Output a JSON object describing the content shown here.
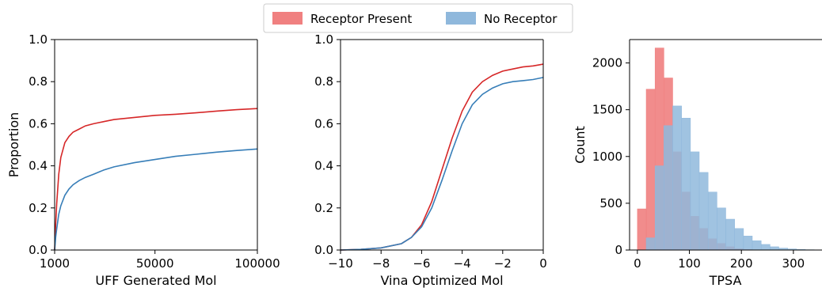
{
  "legend": {
    "placement": "top-center",
    "entries": [
      {
        "label": "Receptor Present",
        "color": "#e41a1c",
        "fill": "#f08080"
      },
      {
        "label": "No Receptor",
        "color": "#377eb8",
        "fill": "#8fb8dc"
      }
    ]
  },
  "chart_data": [
    {
      "type": "line",
      "xlabel": "UFF Generated Mol",
      "ylabel": "Proportion",
      "xlim": [
        1000,
        100000
      ],
      "ylim": [
        0,
        1
      ],
      "xticks": [
        1000,
        50000,
        100000
      ],
      "xtick_labels": [
        "1000",
        "50000",
        "100000"
      ],
      "yticks": [
        0,
        0.2,
        0.4,
        0.6,
        0.8,
        1.0
      ],
      "ytick_labels": [
        "0.0",
        "0.2",
        "0.4",
        "0.6",
        "0.8",
        "1.0"
      ],
      "series": [
        {
          "name": "Receptor Present",
          "color": "#d62728",
          "x": [
            1000,
            1500,
            2000,
            3000,
            4000,
            6000,
            8000,
            10000,
            13000,
            16000,
            20000,
            25000,
            30000,
            40000,
            50000,
            60000,
            70000,
            80000,
            90000,
            100000
          ],
          "y": [
            0.0,
            0.12,
            0.22,
            0.36,
            0.44,
            0.51,
            0.54,
            0.56,
            0.575,
            0.59,
            0.6,
            0.61,
            0.62,
            0.63,
            0.64,
            0.645,
            0.652,
            0.66,
            0.667,
            0.672
          ]
        },
        {
          "name": "No Receptor",
          "color": "#377eb8",
          "x": [
            1000,
            1500,
            2000,
            3000,
            4000,
            6000,
            8000,
            10000,
            13000,
            16000,
            20000,
            25000,
            30000,
            40000,
            50000,
            60000,
            70000,
            80000,
            90000,
            100000
          ],
          "y": [
            0.0,
            0.06,
            0.1,
            0.17,
            0.21,
            0.26,
            0.29,
            0.31,
            0.33,
            0.345,
            0.36,
            0.38,
            0.395,
            0.415,
            0.43,
            0.445,
            0.455,
            0.465,
            0.473,
            0.48
          ]
        }
      ]
    },
    {
      "type": "line",
      "xlabel": "Vina Optimized Mol",
      "ylabel": "",
      "xlim": [
        -10,
        0
      ],
      "ylim": [
        0,
        1
      ],
      "xticks": [
        -10,
        -8,
        -6,
        -4,
        -2,
        0
      ],
      "xtick_labels": [
        "−10",
        "−8",
        "−6",
        "−4",
        "−2",
        "0"
      ],
      "yticks": [
        0,
        0.2,
        0.4,
        0.6,
        0.8,
        1.0
      ],
      "ytick_labels": [
        "0.0",
        "0.2",
        "0.4",
        "0.6",
        "0.8",
        "1.0"
      ],
      "series": [
        {
          "name": "Receptor Present",
          "color": "#d62728",
          "x": [
            -10,
            -9,
            -8,
            -7,
            -6.5,
            -6,
            -5.5,
            -5,
            -4.5,
            -4,
            -3.5,
            -3,
            -2.5,
            -2,
            -1.5,
            -1,
            -0.5,
            0
          ],
          "y": [
            0.0,
            0.003,
            0.01,
            0.03,
            0.06,
            0.12,
            0.23,
            0.38,
            0.53,
            0.66,
            0.75,
            0.8,
            0.83,
            0.85,
            0.86,
            0.87,
            0.875,
            0.883
          ]
        },
        {
          "name": "No Receptor",
          "color": "#377eb8",
          "x": [
            -10,
            -9,
            -8,
            -7,
            -6.5,
            -6,
            -5.5,
            -5,
            -4.5,
            -4,
            -3.5,
            -3,
            -2.5,
            -2,
            -1.5,
            -1,
            -0.5,
            0
          ],
          "y": [
            0.0,
            0.003,
            0.01,
            0.03,
            0.06,
            0.11,
            0.2,
            0.33,
            0.47,
            0.6,
            0.69,
            0.74,
            0.77,
            0.79,
            0.8,
            0.805,
            0.81,
            0.82
          ]
        }
      ]
    },
    {
      "type": "bar",
      "subtype": "histogram",
      "xlabel": "TPSA",
      "ylabel": "Count",
      "xlim": [
        -15,
        355
      ],
      "ylim": [
        0,
        2250
      ],
      "xticks": [
        0,
        100,
        200,
        300
      ],
      "xtick_labels": [
        "0",
        "100",
        "200",
        "300"
      ],
      "yticks": [
        0,
        500,
        1000,
        1500,
        2000
      ],
      "ytick_labels": [
        "0",
        "500",
        "1000",
        "1500",
        "2000"
      ],
      "series": [
        {
          "name": "Receptor Present",
          "color": "#f08080",
          "opacity": 0.9,
          "bins": [
            0,
            17,
            34,
            51,
            68,
            85,
            102,
            119,
            136,
            153,
            170,
            187,
            204,
            221,
            238,
            255,
            272,
            289,
            306,
            323,
            340
          ],
          "values": [
            440,
            1720,
            2160,
            1840,
            1050,
            620,
            360,
            230,
            120,
            70,
            35,
            15,
            5,
            0,
            0,
            0,
            0,
            0,
            0,
            0
          ]
        },
        {
          "name": "No Receptor",
          "color": "#8fb8dc",
          "opacity": 0.85,
          "bins": [
            17,
            34,
            51,
            68,
            85,
            102,
            119,
            136,
            153,
            170,
            187,
            204,
            221,
            238,
            255,
            272,
            289,
            306,
            323,
            340,
            357
          ],
          "values": [
            130,
            900,
            1330,
            1540,
            1410,
            1050,
            830,
            620,
            450,
            330,
            230,
            150,
            100,
            60,
            35,
            20,
            12,
            6,
            3,
            1
          ]
        }
      ]
    }
  ]
}
